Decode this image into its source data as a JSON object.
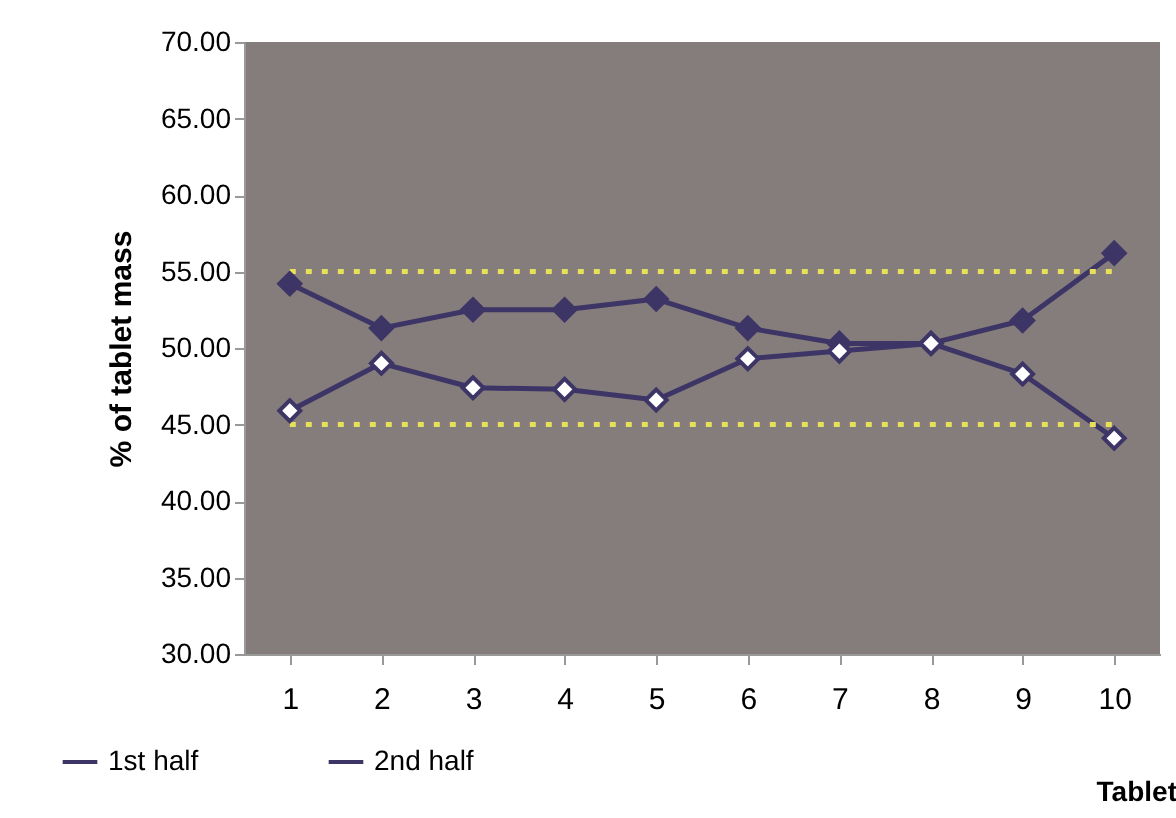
{
  "chart_data": {
    "type": "line",
    "xlabel": "Tablet",
    "ylabel": "% of tablet mass",
    "categories": [
      "1",
      "2",
      "3",
      "4",
      "5",
      "6",
      "7",
      "8",
      "9",
      "10"
    ],
    "series": [
      {
        "name": "1st half",
        "color": "#3d3566",
        "values": [
          54.2,
          51.3,
          52.5,
          52.5,
          53.2,
          51.3,
          50.3,
          50.3,
          51.8,
          56.2
        ]
      },
      {
        "name": "2nd half",
        "color": "#3d3566",
        "values": [
          45.9,
          49.0,
          47.4,
          47.3,
          46.6,
          49.3,
          49.8,
          50.3,
          48.3,
          44.1
        ]
      }
    ],
    "ylim": [
      30,
      70
    ],
    "yticks": [
      {
        "value": 30,
        "label": "30.00"
      },
      {
        "value": 35,
        "label": "35.00"
      },
      {
        "value": 40,
        "label": "40.00"
      },
      {
        "value": 45,
        "label": "45.00"
      },
      {
        "value": 50,
        "label": "50.00"
      },
      {
        "value": 55,
        "label": "55.00"
      },
      {
        "value": 60,
        "label": "60.00"
      },
      {
        "value": 65,
        "label": "65.00"
      },
      {
        "value": 70,
        "label": "70.00"
      }
    ],
    "ref_lines": [
      {
        "axis": "y",
        "value": 55,
        "color": "#e8e05a",
        "line_style": "dotted"
      },
      {
        "axis": "y",
        "value": 45,
        "color": "#e8e05a",
        "line_style": "dotted"
      }
    ],
    "grid": false,
    "legend": "bottom left",
    "marker": "diamond",
    "line_style": "solid"
  }
}
